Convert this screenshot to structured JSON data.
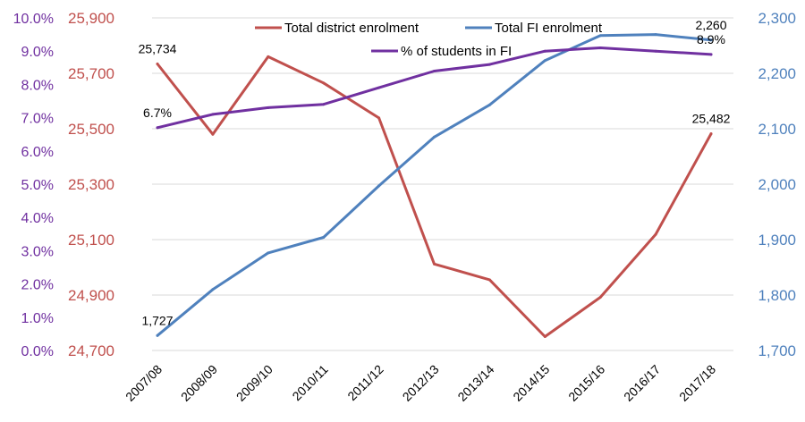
{
  "chart_data": {
    "type": "line",
    "title": "",
    "xlabel": "",
    "categories": [
      "2007/08",
      "2008/09",
      "2009/10",
      "2010/11",
      "2011/12",
      "2012/13",
      "2013/14",
      "2014/15",
      "2015/16",
      "2016/17",
      "2017/18"
    ],
    "axes": {
      "left_pct": {
        "min": 0,
        "max": 10,
        "step": 1,
        "tick_labels": [
          "0.0%",
          "1.0%",
          "2.0%",
          "3.0%",
          "4.0%",
          "5.0%",
          "6.0%",
          "7.0%",
          "8.0%",
          "9.0%",
          "10.0%"
        ],
        "color": "#7030A0"
      },
      "left_enrol": {
        "min": 24700,
        "max": 25900,
        "step": 200,
        "tick_labels": [
          "24,700",
          "24,900",
          "25,100",
          "25,300",
          "25,500",
          "25,700",
          "25,900"
        ],
        "color": "#C0504D"
      },
      "right_fi": {
        "min": 1700,
        "max": 2300,
        "step": 100,
        "tick_labels": [
          "1,700",
          "1,800",
          "1,900",
          "2,000",
          "2,100",
          "2,200",
          "2,300"
        ],
        "color": "#4F81BD"
      }
    },
    "grid": true,
    "legend_position": "top",
    "series": [
      {
        "name": "Total district enrolment",
        "axis": "left_enrol",
        "color": "#C0504D",
        "values": [
          25734,
          25480,
          25760,
          25665,
          25539,
          25012,
          24955,
          24750,
          24892,
          25119,
          25482
        ]
      },
      {
        "name": "Total FI enrolment",
        "axis": "right_fi",
        "color": "#4F81BD",
        "values": [
          1727,
          1810,
          1876,
          1904,
          1997,
          2085,
          2143,
          2223,
          2268,
          2270,
          2260
        ]
      },
      {
        "name": "% of students in FI",
        "axis": "left_pct",
        "color": "#7030A0",
        "values": [
          6.7,
          7.1,
          7.3,
          7.4,
          7.9,
          8.4,
          8.6,
          9.0,
          9.1,
          9.0,
          8.9
        ]
      }
    ],
    "data_labels": [
      {
        "series": 0,
        "index": 0,
        "text": "25,734",
        "position": "above"
      },
      {
        "series": 0,
        "index": 10,
        "text": "25,482",
        "position": "above"
      },
      {
        "series": 1,
        "index": 0,
        "text": "1,727",
        "position": "above"
      },
      {
        "series": 1,
        "index": 10,
        "text": "2,260",
        "position": "above"
      },
      {
        "series": 2,
        "index": 0,
        "text": "6.7%",
        "position": "above"
      },
      {
        "series": 2,
        "index": 10,
        "text": "8.9%",
        "position": "above"
      }
    ]
  }
}
